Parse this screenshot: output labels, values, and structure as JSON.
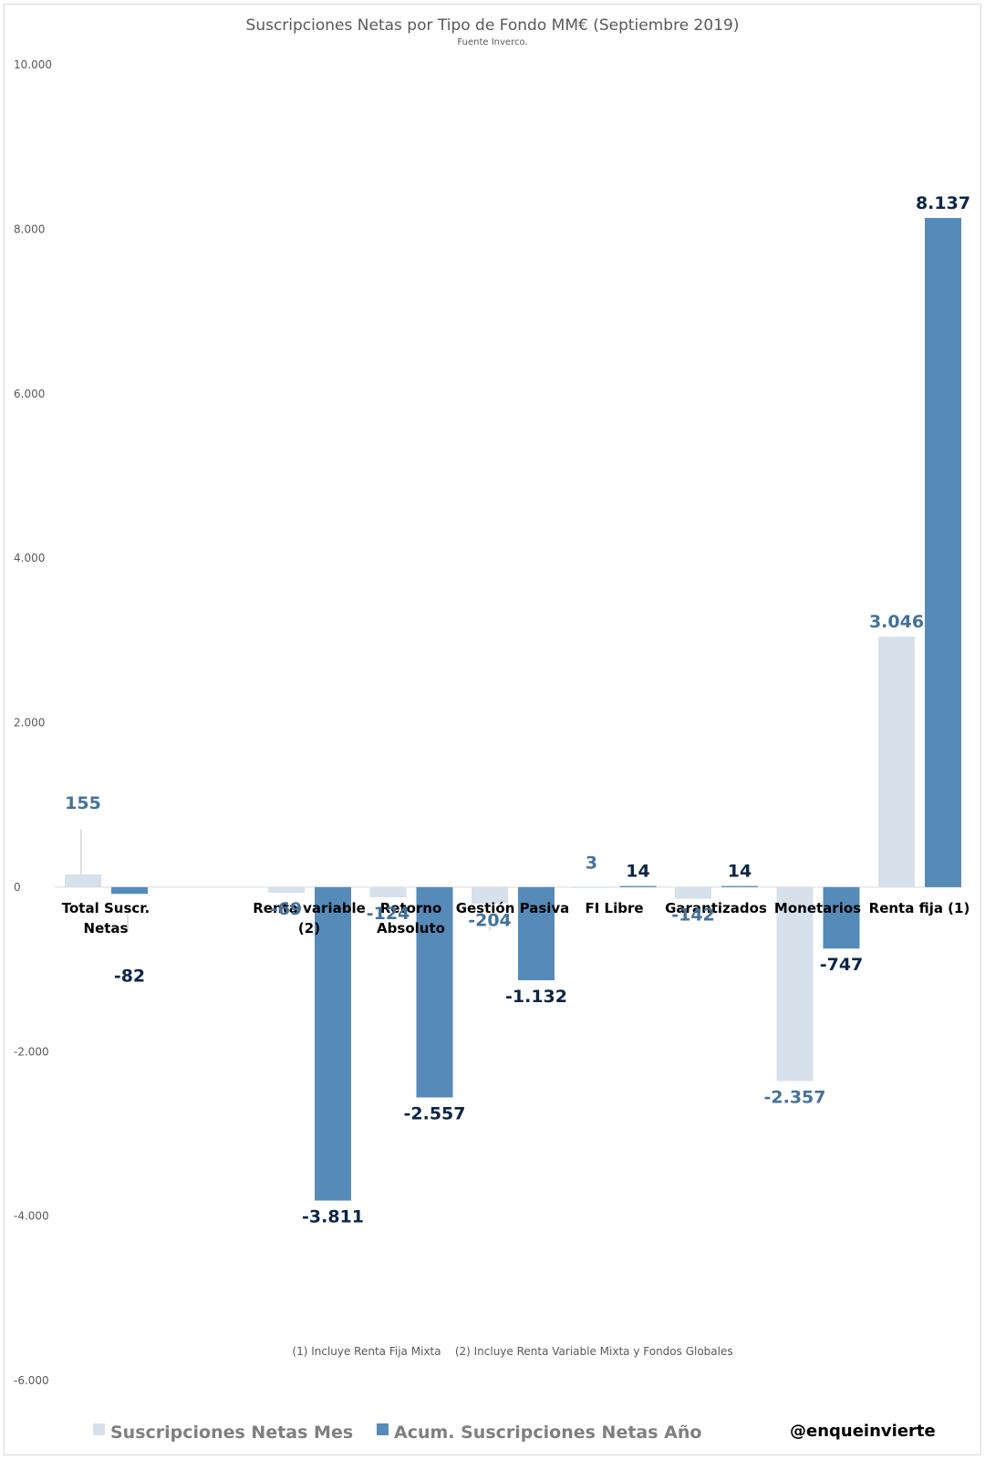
{
  "chart_data": {
    "type": "bar",
    "title": "Suscripciones  Netas por Tipo de Fondo MM€ (Septiembre 2019)",
    "subtitle": "Fuente Inverco.",
    "categories": [
      "Total Suscr. Netas",
      "",
      "Renta variable (2)",
      "Retorno Absoluto",
      "Gestión Pasiva",
      "FI Libre",
      "Garantizados",
      "Monetarios",
      "Renta fija (1)"
    ],
    "category_lines": [
      [
        "Total Suscr.",
        "Netas"
      ],
      [],
      [
        "Renta variable",
        "(2)"
      ],
      [
        "Retorno",
        "Absoluto"
      ],
      [
        "Gestión Pasiva"
      ],
      [
        "FI Libre"
      ],
      [
        "Garantizados"
      ],
      [
        "Monetarios"
      ],
      [
        "Renta fija (1)"
      ]
    ],
    "series": [
      {
        "name": "Suscripciones Netas Mes",
        "color": "#d6e1ec",
        "values": [
          155,
          null,
          -69,
          -124,
          -204,
          3,
          -142,
          -2357,
          3046
        ],
        "labels": [
          "155",
          "",
          "-69",
          "-124",
          "-204",
          "3",
          "-142",
          "-2.357",
          "3.046"
        ]
      },
      {
        "name": "Acum. Suscripciones Netas Año",
        "color": "#568bb9",
        "values": [
          -82,
          null,
          -3811,
          -2557,
          -1132,
          14,
          14,
          -747,
          8137
        ],
        "labels": [
          "-82",
          "",
          "-3.811",
          "-2.557",
          "-1.132",
          "14",
          "14",
          "-747",
          "8.137"
        ]
      }
    ],
    "ylim": [
      -6000,
      10000
    ],
    "yticks": [
      10000,
      8000,
      6000,
      4000,
      2000,
      0,
      -2000,
      -4000,
      -6000
    ],
    "ytick_labels": [
      "10.000",
      "8.000",
      "6.000",
      "4.000",
      "2.000",
      "0",
      "-2.000",
      "-4.000",
      "-6.000"
    ],
    "grid": false,
    "legend_position": "bottom-left",
    "notes": "(1) Incluye Renta Fija Mixta    (2) Incluye Renta Variable Mixta y Fondos Globales",
    "handle": "@enqueinvierte"
  }
}
